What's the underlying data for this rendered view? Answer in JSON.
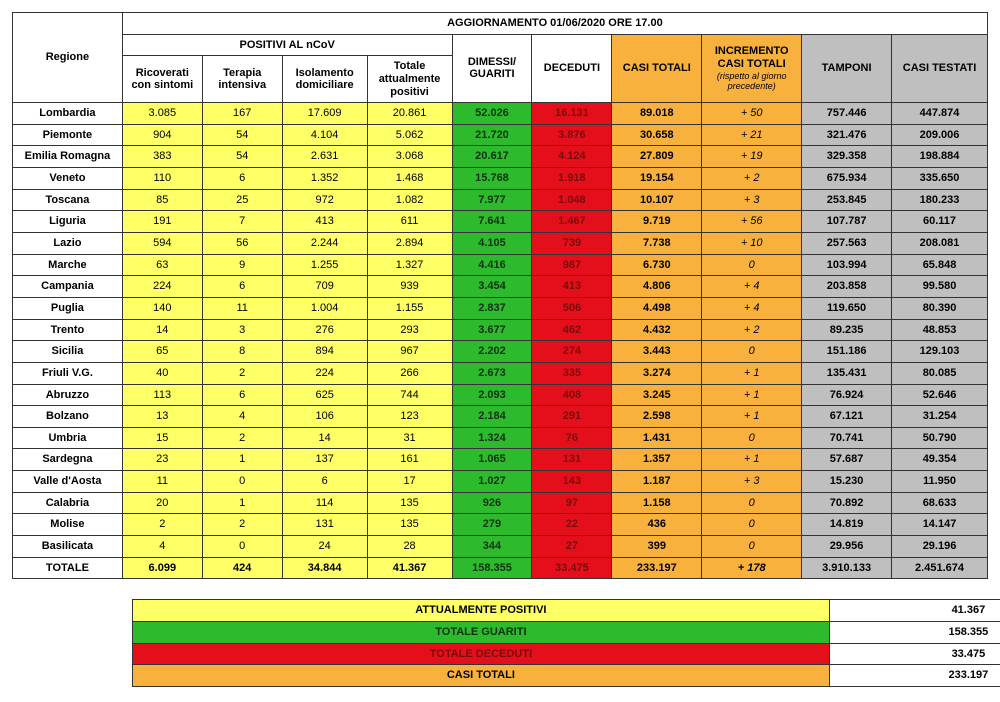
{
  "title": "AGGIORNAMENTO 01/06/2020 ORE 17.00",
  "colgroups": {
    "regione": "Regione",
    "positivi": "POSITIVI AL nCoV"
  },
  "columns": {
    "ricoverati": "Ricoverati con sintomi",
    "terapia": "Terapia intensiva",
    "isolamento": "Isolamento domiciliare",
    "totale_pos": "Totale attualmente positivi",
    "guariti": "DIMESSI/ GUARITI",
    "deceduti": "DECEDUTI",
    "casi_totali": "CASI TOTALI",
    "incremento": "INCREMENTO CASI  TOTALI",
    "incremento_sub": "(rispetto al giorno precedente)",
    "tamponi": "TAMPONI",
    "testati": "CASI TESTATI"
  },
  "rows": [
    {
      "regione": "Lombardia",
      "ric": "3.085",
      "ter": "167",
      "iso": "17.609",
      "tot": "20.861",
      "gua": "52.026",
      "dec": "16.131",
      "cas": "89.018",
      "inc": "+ 50",
      "tam": "757.446",
      "tes": "447.874"
    },
    {
      "regione": "Piemonte",
      "ric": "904",
      "ter": "54",
      "iso": "4.104",
      "tot": "5.062",
      "gua": "21.720",
      "dec": "3.876",
      "cas": "30.658",
      "inc": "+ 21",
      "tam": "321.476",
      "tes": "209.006"
    },
    {
      "regione": "Emilia Romagna",
      "ric": "383",
      "ter": "54",
      "iso": "2.631",
      "tot": "3.068",
      "gua": "20.617",
      "dec": "4.124",
      "cas": "27.809",
      "inc": "+ 19",
      "tam": "329.358",
      "tes": "198.884"
    },
    {
      "regione": "Veneto",
      "ric": "110",
      "ter": "6",
      "iso": "1.352",
      "tot": "1.468",
      "gua": "15.768",
      "dec": "1.918",
      "cas": "19.154",
      "inc": "+ 2",
      "tam": "675.934",
      "tes": "335.650"
    },
    {
      "regione": "Toscana",
      "ric": "85",
      "ter": "25",
      "iso": "972",
      "tot": "1.082",
      "gua": "7.977",
      "dec": "1.048",
      "cas": "10.107",
      "inc": "+ 3",
      "tam": "253.845",
      "tes": "180.233"
    },
    {
      "regione": "Liguria",
      "ric": "191",
      "ter": "7",
      "iso": "413",
      "tot": "611",
      "gua": "7.641",
      "dec": "1.467",
      "cas": "9.719",
      "inc": "+ 56",
      "tam": "107.787",
      "tes": "60.117"
    },
    {
      "regione": "Lazio",
      "ric": "594",
      "ter": "56",
      "iso": "2.244",
      "tot": "2.894",
      "gua": "4.105",
      "dec": "739",
      "cas": "7.738",
      "inc": "+ 10",
      "tam": "257.563",
      "tes": "208.081"
    },
    {
      "regione": "Marche",
      "ric": "63",
      "ter": "9",
      "iso": "1.255",
      "tot": "1.327",
      "gua": "4.416",
      "dec": "987",
      "cas": "6.730",
      "inc": "0",
      "tam": "103.994",
      "tes": "65.848"
    },
    {
      "regione": "Campania",
      "ric": "224",
      "ter": "6",
      "iso": "709",
      "tot": "939",
      "gua": "3.454",
      "dec": "413",
      "cas": "4.806",
      "inc": "+ 4",
      "tam": "203.858",
      "tes": "99.580"
    },
    {
      "regione": "Puglia",
      "ric": "140",
      "ter": "11",
      "iso": "1.004",
      "tot": "1.155",
      "gua": "2.837",
      "dec": "506",
      "cas": "4.498",
      "inc": "+ 4",
      "tam": "119.650",
      "tes": "80.390"
    },
    {
      "regione": "Trento",
      "ric": "14",
      "ter": "3",
      "iso": "276",
      "tot": "293",
      "gua": "3.677",
      "dec": "462",
      "cas": "4.432",
      "inc": "+ 2",
      "tam": "89.235",
      "tes": "48.853"
    },
    {
      "regione": "Sicilia",
      "ric": "65",
      "ter": "8",
      "iso": "894",
      "tot": "967",
      "gua": "2.202",
      "dec": "274",
      "cas": "3.443",
      "inc": "0",
      "tam": "151.186",
      "tes": "129.103"
    },
    {
      "regione": "Friuli V.G.",
      "ric": "40",
      "ter": "2",
      "iso": "224",
      "tot": "266",
      "gua": "2.673",
      "dec": "335",
      "cas": "3.274",
      "inc": "+ 1",
      "tam": "135.431",
      "tes": "80.085"
    },
    {
      "regione": "Abruzzo",
      "ric": "113",
      "ter": "6",
      "iso": "625",
      "tot": "744",
      "gua": "2.093",
      "dec": "408",
      "cas": "3.245",
      "inc": "+ 1",
      "tam": "76.924",
      "tes": "52.646"
    },
    {
      "regione": "Bolzano",
      "ric": "13",
      "ter": "4",
      "iso": "106",
      "tot": "123",
      "gua": "2.184",
      "dec": "291",
      "cas": "2.598",
      "inc": "+ 1",
      "tam": "67.121",
      "tes": "31.254"
    },
    {
      "regione": "Umbria",
      "ric": "15",
      "ter": "2",
      "iso": "14",
      "tot": "31",
      "gua": "1.324",
      "dec": "76",
      "cas": "1.431",
      "inc": "0",
      "tam": "70.741",
      "tes": "50.790"
    },
    {
      "regione": "Sardegna",
      "ric": "23",
      "ter": "1",
      "iso": "137",
      "tot": "161",
      "gua": "1.065",
      "dec": "131",
      "cas": "1.357",
      "inc": "+ 1",
      "tam": "57.687",
      "tes": "49.354"
    },
    {
      "regione": "Valle d'Aosta",
      "ric": "11",
      "ter": "0",
      "iso": "6",
      "tot": "17",
      "gua": "1.027",
      "dec": "143",
      "cas": "1.187",
      "inc": "+ 3",
      "tam": "15.230",
      "tes": "11.950"
    },
    {
      "regione": "Calabria",
      "ric": "20",
      "ter": "1",
      "iso": "114",
      "tot": "135",
      "gua": "926",
      "dec": "97",
      "cas": "1.158",
      "inc": "0",
      "tam": "70.892",
      "tes": "68.633"
    },
    {
      "regione": "Molise",
      "ric": "2",
      "ter": "2",
      "iso": "131",
      "tot": "135",
      "gua": "279",
      "dec": "22",
      "cas": "436",
      "inc": "0",
      "tam": "14.819",
      "tes": "14.147"
    },
    {
      "regione": "Basilicata",
      "ric": "4",
      "ter": "0",
      "iso": "24",
      "tot": "28",
      "gua": "344",
      "dec": "27",
      "cas": "399",
      "inc": "0",
      "tam": "29.956",
      "tes": "29.196"
    }
  ],
  "total": {
    "regione": "TOTALE",
    "ric": "6.099",
    "ter": "424",
    "iso": "34.844",
    "tot": "41.367",
    "gua": "158.355",
    "dec": "33.475",
    "cas": "233.197",
    "inc": "+ 178",
    "tam": "3.910.133",
    "tes": "2.451.674"
  },
  "summary": {
    "positivi_label": "ATTUALMENTE POSITIVI",
    "positivi_val": "41.367",
    "guariti_label": "TOTALE GUARITI",
    "guariti_val": "158.355",
    "deceduti_label": "TOTALE DECEDUTI",
    "deceduti_val": "33.475",
    "casi_label": "CASI TOTALI",
    "casi_val": "233.197"
  },
  "widths": {
    "regione": 110,
    "ric": 80,
    "ter": 80,
    "iso": 85,
    "tot": 85,
    "gua": 80,
    "dec": 80,
    "cas": 90,
    "inc": 100,
    "tam": 90,
    "tes": 96
  }
}
